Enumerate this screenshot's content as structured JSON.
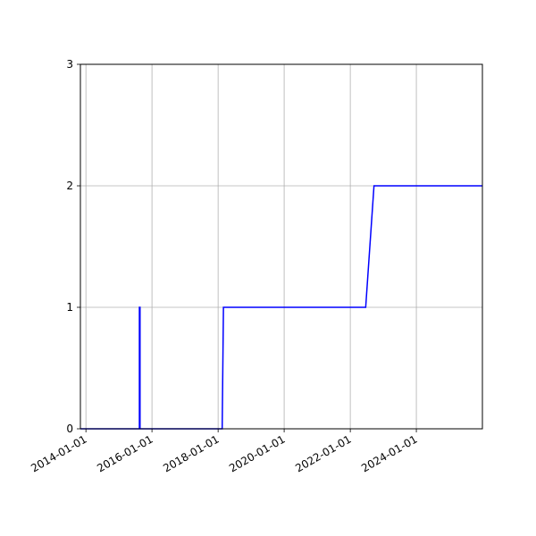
{
  "chart_data": {
    "type": "line",
    "title": "",
    "xlabel": "",
    "ylabel": "",
    "x_axis_type": "date",
    "xlim": [
      "2013-11-01",
      "2025-12-31"
    ],
    "ylim": [
      0,
      3
    ],
    "x_ticks": [
      "2014-01-01",
      "2016-01-01",
      "2018-01-01",
      "2020-01-01",
      "2022-01-01",
      "2024-01-01"
    ],
    "y_ticks": [
      0,
      1,
      2,
      3
    ],
    "grid": true,
    "legend": "none",
    "series": [
      {
        "color": "#0000ff",
        "points": [
          {
            "x": "2013-11-01",
            "y": 0
          },
          {
            "x": "2015-08-15",
            "y": 0
          },
          {
            "x": "2015-08-15",
            "y": 1
          },
          {
            "x": "2015-08-22",
            "y": 1
          },
          {
            "x": "2015-08-22",
            "y": 0
          },
          {
            "x": "2018-02-15",
            "y": 0
          },
          {
            "x": "2018-03-01",
            "y": 1
          },
          {
            "x": "2022-06-20",
            "y": 1
          },
          {
            "x": "2022-09-20",
            "y": 2
          },
          {
            "x": "2025-12-31",
            "y": 2
          }
        ]
      }
    ]
  }
}
